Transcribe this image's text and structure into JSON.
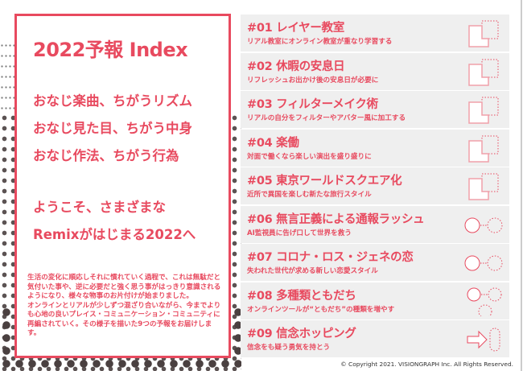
{
  "card": {
    "title": "2022予報 Index",
    "lines": [
      "おなじ楽曲、ちがうリズム",
      "おなじ見た目、ちがう中身",
      "おなじ作法、ちがう行為"
    ],
    "welcome": [
      "ようこそ、さまざまな",
      "Remixがはじまる2022へ"
    ],
    "body": [
      "生活の変化に順応しそれに慣れていく過程で、これは無駄だと気付いた事や、逆に必要だと強く思う事がはっきり意識されるようになり、様々な物事のお片付けが始まりました。",
      "オンラインとリアルが少しずつ混ざり合いながら、今までよりも心地の良いプレイス・コミュニケーション・コミュニティに再編されていく。その様子を描いた9つの予報をお届けします。"
    ]
  },
  "items": [
    {
      "title": "#01 レイヤー教室",
      "sub": "リアル教室にオンライン教室が重なり学習する",
      "icon": "layer-icon"
    },
    {
      "title": "#02 休暇の安息日",
      "sub": "リフレッシュお出かけ後の安息日が必要に",
      "icon": "layer-icon"
    },
    {
      "title": "#03 フィルターメイク術",
      "sub": "リアルの自分をフィルターやアバター風に加工する",
      "icon": "layer-icon"
    },
    {
      "title": "#04 楽働",
      "sub": "対面で働くなら楽しい演出を盛り盛りに",
      "icon": "layer-icon"
    },
    {
      "title": "#05 東京ワールドスクエア化",
      "sub": "近所で異国を楽しむ新たな旅行スタイル",
      "icon": "layer-icon"
    },
    {
      "title": "#06 無言正義による通報ラッシュ",
      "sub": "AI監視員に告げ口して世界を救う",
      "icon": "circle-pair-icon"
    },
    {
      "title": "#07 コロナ・ロス・ジェネの恋",
      "sub": "失われた世代が求める新しい恋愛スタイル",
      "icon": "circle-pair-icon"
    },
    {
      "title": "#08 多種類ともだち",
      "sub": "オンラインツールが“ともだち”の種類を増やす",
      "icon": "circle-network-icon"
    },
    {
      "title": "#09 信念ホッピング",
      "sub": "信念をも疑う勇気を持とう",
      "icon": "arrow-hop-icon"
    }
  ],
  "copyright": "© Copyright 2021. VISIONGRAPH Inc. All Rights Reserved.",
  "colors": {
    "accent": "#e84a5f",
    "item_bg": "#efefef"
  }
}
